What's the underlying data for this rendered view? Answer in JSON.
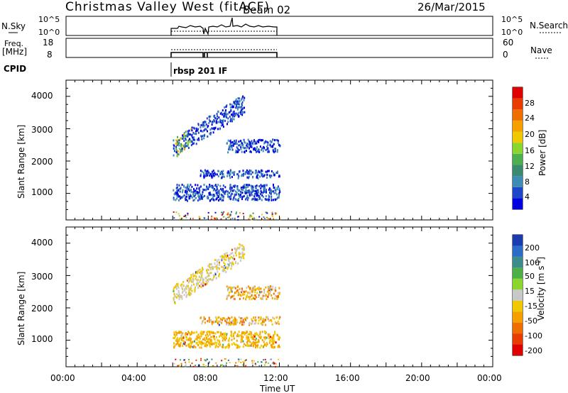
{
  "header": {
    "station": "Christmas Valley West (fitACF)",
    "beam": "Beam 02",
    "date": "26/Mar/2015"
  },
  "noise_panel": {
    "left_label": "N.Sky",
    "right_label": "N.Search",
    "ticks_left": [
      "10^5",
      "10^0"
    ],
    "ticks_right": [
      "10^5",
      "10^0"
    ]
  },
  "freq_panel": {
    "left_label_1": "Freq.",
    "left_label_2": "[MHz]",
    "right_label": "Nave",
    "ticks_left": [
      "18",
      "8"
    ],
    "ticks_right": [
      "60",
      "0"
    ]
  },
  "cpid": {
    "label": "CPID",
    "program": "rbsp 201 IF"
  },
  "x_axis": {
    "label": "Time UT",
    "ticks": [
      "00:00",
      "04:00",
      "08:00",
      "12:00",
      "16:00",
      "20:00",
      "00:00"
    ]
  },
  "power_panel": {
    "ylabel": "Slant Range [km]",
    "yticks": [
      "1000",
      "2000",
      "3000",
      "4000"
    ],
    "cbar_label": "Power [dB]",
    "cbar_ticks": [
      "4",
      "8",
      "12",
      "16",
      "20",
      "24",
      "28"
    ],
    "cbar_colors": [
      "#0000e0",
      "#1e46c8",
      "#3c8cb4",
      "#3a8a70",
      "#4caf50",
      "#8ad62e",
      "#f0c800",
      "#f5a000",
      "#f06e00",
      "#e83c00",
      "#e00000"
    ]
  },
  "velocity_panel": {
    "ylabel": "Slant Range [km]",
    "yticks": [
      "1000",
      "2000",
      "3000",
      "4000"
    ],
    "cbar_label": "Velocity [m s",
    "cbar_label_sup": "-1",
    "cbar_label_end": "]",
    "cbar_ticks": [
      "200",
      "100",
      "50",
      "15",
      "-15",
      "-50",
      "-100",
      "-200"
    ],
    "cbar_colors": [
      "#1a3cb0",
      "#2a6cc8",
      "#3c8c8c",
      "#4cb046",
      "#8ad62e",
      "#c8c8c8",
      "#f0c800",
      "#f5a000",
      "#f06e00",
      "#e83c00",
      "#e00000"
    ]
  },
  "chart_data": {
    "type": "heatmap",
    "x_axis": "Time UT",
    "x_range_hours": [
      0,
      24
    ],
    "y_axis": "Slant Range [km]",
    "y_range_km": [
      180,
      4500
    ],
    "data_window_hours": [
      6,
      12
    ],
    "echo_regions": [
      {
        "name": "near-range band",
        "t_start": 6.0,
        "t_end": 12.0,
        "range_km": [
          800,
          1300
        ]
      },
      {
        "name": "mid-range band",
        "t_start": 7.5,
        "t_end": 12.0,
        "range_km": [
          1500,
          1750
        ]
      },
      {
        "name": "rising band",
        "t_start": 6.0,
        "t_end": 10.0,
        "range_km": [
          2400,
          3800
        ]
      },
      {
        "name": "far-range band",
        "t_start": 9.0,
        "t_end": 12.0,
        "range_km": [
          2300,
          2700
        ]
      }
    ]
  }
}
